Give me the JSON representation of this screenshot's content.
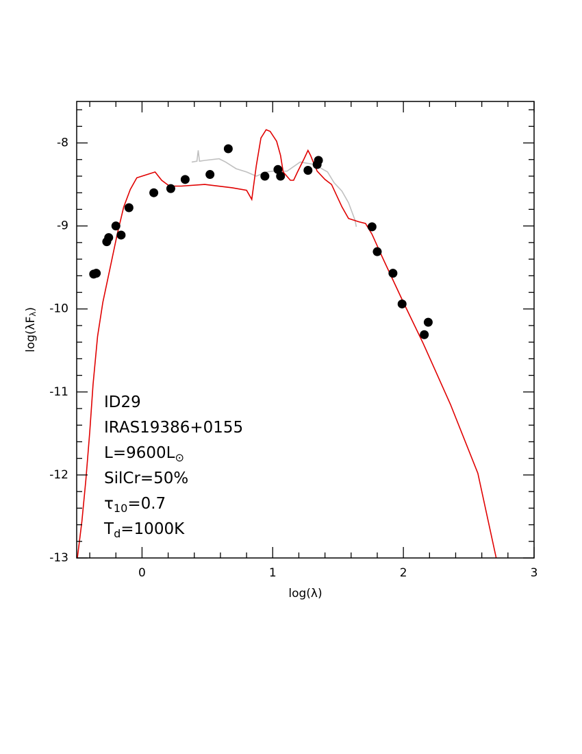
{
  "chart_data": {
    "type": "sed",
    "xlabel": [
      {
        "text": "log(λ)"
      }
    ],
    "ylabel": [
      {
        "text": "log(λF"
      },
      {
        "sub": "λ"
      },
      {
        "text": ")"
      }
    ],
    "xlim": [
      -0.5,
      3
    ],
    "ylim": [
      -13,
      -7.5
    ],
    "xticks": [
      0,
      1,
      2,
      3
    ],
    "yticks": [
      -13,
      -12,
      -11,
      -10,
      -9,
      -8
    ],
    "xminorticks": [
      -0.4,
      -0.2,
      0.2,
      0.4,
      0.6,
      0.8,
      1.2,
      1.4,
      1.6,
      1.8,
      2.2,
      2.4,
      2.6,
      2.8
    ],
    "yminorticks": [
      -12.8,
      -12.6,
      -12.4,
      -12.2,
      -11.8,
      -11.6,
      -11.4,
      -11.2,
      -10.8,
      -10.6,
      -10.4,
      -10.2,
      -9.8,
      -9.6,
      -9.4,
      -9.2,
      -8.8,
      -8.6,
      -8.4,
      -8.2,
      -7.8,
      -7.6
    ],
    "layers": [
      {
        "type": "line",
        "color": "#c0c0c0",
        "x": [
          0.38,
          0.42,
          0.43,
          0.44,
          0.48,
          0.59,
          0.64,
          0.72,
          0.8,
          0.875,
          0.95,
          1.0,
          1.11,
          1.21,
          1.32,
          1.42,
          1.47,
          1.53,
          1.58,
          1.63,
          1.64
        ],
        "y": [
          -8.23,
          -8.22,
          -8.09,
          -8.22,
          -8.21,
          -8.19,
          -8.23,
          -8.31,
          -8.35,
          -8.4,
          -8.35,
          -8.34,
          -8.34,
          -8.23,
          -8.26,
          -8.35,
          -8.48,
          -8.58,
          -8.72,
          -8.93,
          -9.01
        ]
      },
      {
        "type": "line",
        "color": "#e00000",
        "x": [
          -0.495,
          -0.46,
          -0.43,
          -0.4,
          -0.375,
          -0.34,
          -0.3,
          -0.245,
          -0.19,
          -0.14,
          -0.09,
          -0.04,
          0.1,
          0.15,
          0.21,
          0.3,
          0.48,
          0.69,
          0.8,
          0.84,
          0.875,
          0.91,
          0.95,
          0.98,
          1.03,
          1.06,
          1.08,
          1.135,
          1.16,
          1.19,
          1.24,
          1.27,
          1.29,
          1.32,
          1.34,
          1.4,
          1.45,
          1.53,
          1.58,
          1.66,
          1.71,
          1.76,
          1.84,
          2.0,
          2.15,
          2.36,
          2.57,
          2.71
        ],
        "y": [
          -13.0,
          -12.56,
          -12.06,
          -11.48,
          -10.91,
          -10.33,
          -9.92,
          -9.51,
          -9.1,
          -8.77,
          -8.56,
          -8.42,
          -8.35,
          -8.45,
          -8.52,
          -8.52,
          -8.5,
          -8.54,
          -8.57,
          -8.68,
          -8.27,
          -7.94,
          -7.84,
          -7.86,
          -7.98,
          -8.15,
          -8.35,
          -8.45,
          -8.45,
          -8.35,
          -8.19,
          -8.09,
          -8.15,
          -8.27,
          -8.34,
          -8.44,
          -8.5,
          -8.77,
          -8.91,
          -8.95,
          -8.97,
          -9.1,
          -9.38,
          -9.92,
          -10.41,
          -11.15,
          -11.98,
          -13.0
        ]
      },
      {
        "type": "scatter",
        "color": "#000000",
        "x": [
          -0.37,
          -0.35,
          -0.27,
          -0.255,
          -0.2,
          -0.16,
          -0.1,
          0.09,
          0.22,
          0.33,
          0.52,
          0.66,
          0.94,
          1.04,
          1.06,
          1.27,
          1.34,
          1.35,
          1.76,
          1.8,
          1.92,
          1.99,
          2.16,
          2.19
        ],
        "y": [
          -9.58,
          -9.57,
          -9.19,
          -9.14,
          -9.0,
          -9.11,
          -8.78,
          -8.6,
          -8.55,
          -8.44,
          -8.38,
          -8.07,
          -8.4,
          -8.32,
          -8.4,
          -8.33,
          -8.26,
          -8.21,
          -9.01,
          -9.31,
          -9.57,
          -9.94,
          -10.31,
          -10.16
        ]
      }
    ],
    "annotations": [
      [
        {
          "text": "ID29"
        }
      ],
      [
        {
          "text": "IRAS19386+0155"
        }
      ],
      [
        {
          "text": "L=9600L"
        },
        {
          "sub": "⊙"
        }
      ],
      [
        {
          "text": "SilCr=50%"
        }
      ],
      [
        {
          "text": "τ"
        },
        {
          "sub": "10"
        },
        {
          "text": "=0.7"
        }
      ],
      [
        {
          "text": "T"
        },
        {
          "sub": "d"
        },
        {
          "text": "=1000K"
        }
      ]
    ]
  }
}
